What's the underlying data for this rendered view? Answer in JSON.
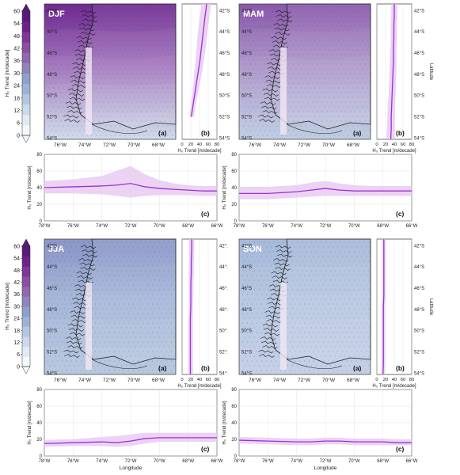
{
  "colors": {
    "trend_line": "#9b30d8",
    "trend_band": "#e7c8f1",
    "coastline": "#1a1a1a",
    "grid": "#dcdcdc",
    "stipple": "#3a3a4a",
    "colorbar_levels": [
      "#f4fafc",
      "#e0eaf3",
      "#cbd9ea",
      "#b4c6e1",
      "#9db2d6",
      "#8f9fca",
      "#9184bd",
      "#9068b0",
      "#8a4ea3",
      "#7d3797",
      "#6d228a",
      "#5a1a78"
    ]
  },
  "colorbar": {
    "label": "H₀ Trend [m/decade]",
    "ticks": [
      "60",
      "54",
      "48",
      "42",
      "36",
      "30",
      "24",
      "18",
      "12",
      "6",
      "0"
    ],
    "tick_values": [
      60,
      54,
      48,
      42,
      36,
      30,
      24,
      18,
      12,
      6,
      0
    ]
  },
  "axis_labels": {
    "lat_trend_x": "H₀ Trend [m/decade]",
    "lon_trend_y": "H₀ Trend [m/decade]",
    "lon_x": "Longitude",
    "lat_y": "Latitude"
  },
  "map_ticks": {
    "lat": [
      "42°S",
      "44°S",
      "46°S",
      "48°S",
      "50°S",
      "52°S",
      "54°S"
    ],
    "lon": [
      "76°W",
      "74°W",
      "72°W",
      "70°W",
      "68°W"
    ],
    "lon_full": [
      "78°W",
      "76°W",
      "74°W",
      "72°W",
      "70°W",
      "68°W",
      "66°W"
    ],
    "lat_right_jja": [
      "42°:",
      "44°:",
      "46°:",
      "48°:",
      "50°:",
      "52°:",
      "54°:"
    ],
    "trend_x_ticks": [
      "0",
      "20",
      "40",
      "60",
      "80"
    ],
    "trend_y_ticks": [
      "0",
      "20",
      "40",
      "60",
      "80"
    ]
  },
  "panel_letters": {
    "a": "(a)",
    "b": "(b)",
    "c": "(c)"
  },
  "chart_data": [
    {
      "type": "line",
      "season": "DJF",
      "lat_profile": {
        "lat": [
          -42.0,
          -42.5,
          -43,
          -44,
          -45,
          -46,
          -47,
          -48,
          -49,
          -50,
          -51,
          -52
        ],
        "trend": [
          56,
          55,
          53,
          50,
          47,
          44,
          41,
          37,
          33,
          29,
          25,
          21
        ],
        "band_low": [
          44,
          43,
          41,
          38,
          35,
          33,
          31,
          28,
          26,
          23,
          20,
          17
        ],
        "band_high": [
          66,
          65,
          63,
          60,
          57,
          54,
          50,
          46,
          41,
          36,
          31,
          27
        ],
        "xlim": [
          0,
          80
        ],
        "ylim": [
          -54,
          -42
        ]
      },
      "lon_profile": {
        "lon": [
          -78,
          -76,
          -74,
          -73,
          -72,
          -71,
          -70,
          -69,
          -68,
          -67,
          -66
        ],
        "trend": [
          40,
          41,
          42,
          43,
          45,
          41,
          39,
          38,
          37,
          36,
          36
        ],
        "band_low": [
          33,
          33,
          32,
          30,
          28,
          30,
          31,
          31,
          31,
          30,
          30
        ],
        "band_high": [
          48,
          50,
          54,
          60,
          66,
          56,
          49,
          45,
          43,
          42,
          42
        ],
        "xlim": [
          -78,
          -66
        ],
        "ylim": [
          0,
          80
        ]
      }
    },
    {
      "type": "line",
      "season": "MAM",
      "lat_profile": {
        "lat": [
          -42.0,
          -43,
          -44,
          -45,
          -46,
          -47,
          -48,
          -49,
          -50,
          -51,
          -52,
          -53,
          -54
        ],
        "trend": [
          40,
          40,
          39,
          39,
          38,
          38,
          37,
          36,
          35,
          34,
          33,
          33,
          32
        ],
        "band_low": [
          33,
          33,
          32,
          32,
          31,
          30,
          29,
          28,
          27,
          25,
          24,
          23,
          22
        ],
        "band_high": [
          47,
          47,
          46,
          46,
          45,
          45,
          45,
          44,
          43,
          42,
          42,
          41,
          41
        ],
        "xlim": [
          0,
          80
        ],
        "ylim": [
          -54,
          -42
        ]
      },
      "lon_profile": {
        "lon": [
          -78,
          -76,
          -74,
          -73,
          -72,
          -71,
          -70,
          -69,
          -68,
          -67,
          -66
        ],
        "trend": [
          33,
          33,
          35,
          37,
          39,
          37,
          36,
          36,
          36,
          36,
          36
        ],
        "band_low": [
          26,
          26,
          28,
          29,
          30,
          30,
          30,
          30,
          30,
          30,
          30
        ],
        "band_high": [
          41,
          41,
          43,
          46,
          48,
          45,
          43,
          42,
          42,
          42,
          42
        ],
        "xlim": [
          -78,
          -66
        ],
        "ylim": [
          0,
          80
        ]
      }
    },
    {
      "type": "line",
      "season": "JJA",
      "lat_profile": {
        "lat": [
          -42.0,
          -43,
          -44,
          -45,
          -46,
          -47,
          -48,
          -49,
          -50,
          -51,
          -52,
          -53,
          -54
        ],
        "trend": [
          22,
          22,
          21,
          21,
          20,
          20,
          20,
          19,
          19,
          19,
          19,
          19,
          19
        ],
        "band_low": [
          16,
          16,
          16,
          15,
          15,
          15,
          15,
          14,
          14,
          14,
          14,
          14,
          14
        ],
        "band_high": [
          28,
          28,
          27,
          27,
          26,
          26,
          25,
          25,
          25,
          25,
          25,
          25,
          25
        ],
        "xlim": [
          0,
          80
        ],
        "ylim": [
          -54,
          -42
        ]
      },
      "lon_profile": {
        "lon": [
          -78,
          -76,
          -74,
          -73,
          -72,
          -71,
          -70,
          -69,
          -68,
          -67,
          -66
        ],
        "trend": [
          15,
          16,
          17,
          16,
          18,
          21,
          22,
          22,
          22,
          22,
          22
        ],
        "band_low": [
          11,
          12,
          12,
          11,
          12,
          15,
          17,
          17,
          17,
          17,
          17
        ],
        "band_high": [
          19,
          20,
          23,
          24,
          26,
          28,
          28,
          28,
          28,
          28,
          28
        ],
        "xlim": [
          -78,
          -66
        ],
        "ylim": [
          0,
          80
        ]
      }
    },
    {
      "type": "line",
      "season": "SON",
      "lat_profile": {
        "lat": [
          -42.0,
          -43,
          -44,
          -45,
          -46,
          -47,
          -48,
          -49,
          -50,
          -51,
          -52,
          -53,
          -54
        ],
        "trend": [
          16,
          16,
          16,
          16,
          16,
          16,
          15,
          15,
          15,
          15,
          15,
          15,
          14
        ],
        "band_low": [
          12,
          12,
          12,
          12,
          12,
          12,
          11,
          11,
          11,
          11,
          11,
          11,
          10
        ],
        "band_high": [
          20,
          20,
          20,
          20,
          20,
          20,
          19,
          19,
          19,
          19,
          19,
          19,
          18
        ],
        "xlim": [
          0,
          80
        ],
        "ylim": [
          -54,
          -42
        ]
      },
      "lon_profile": {
        "lon": [
          -78,
          -76,
          -74,
          -73,
          -72,
          -71,
          -70,
          -69,
          -68,
          -67,
          -66
        ],
        "trend": [
          19,
          18,
          17,
          17,
          18,
          18,
          17,
          17,
          17,
          16,
          16
        ],
        "band_low": [
          15,
          14,
          13,
          13,
          14,
          14,
          13,
          13,
          13,
          13,
          13
        ],
        "band_high": [
          23,
          22,
          21,
          21,
          22,
          22,
          21,
          21,
          21,
          20,
          20
        ],
        "xlim": [
          -78,
          -66
        ],
        "ylim": [
          0,
          80
        ]
      }
    }
  ]
}
